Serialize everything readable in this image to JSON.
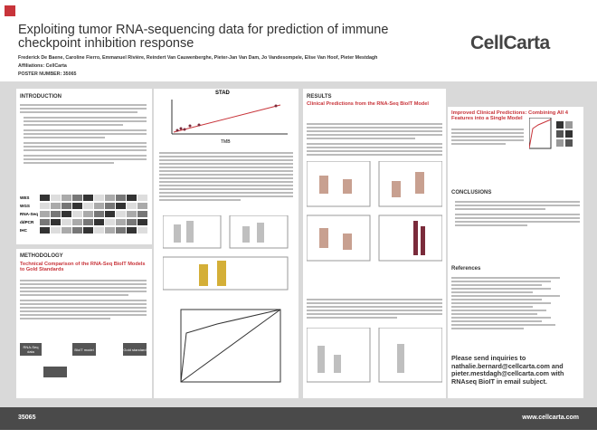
{
  "header": {
    "title": "Exploiting tumor RNA-sequencing data for prediction of immune checkpoint inhibition response",
    "authors": "Frederick De Baene, Caroline Fierro, Emmanuel Rivière, Reindert Van Cauwenberghe, Pieter-Jan Van Dam, Jo Vandesompele, Elise Van Hoof, Pieter Mestdagh",
    "affiliations": "Affiliations: CellCarta",
    "poster_number": "POSTER NUMBER: 35065",
    "logo": "CellCarta"
  },
  "introduction": {
    "title": "INTRODUCTION",
    "assays": [
      "WES",
      "WGS",
      "RNA-Seq",
      "ddPCR",
      "IHC"
    ]
  },
  "methodology": {
    "title": "METHODOLOGY",
    "subtitle": "Technical Comparison of the RNA-Seq BioIT Models to Gold Standards",
    "flow": [
      "RNA-Seq data",
      "BioIT model",
      "Gold standard"
    ]
  },
  "figure": {
    "title": "STAD",
    "x_label": "TMB"
  },
  "results": {
    "title": "RESULTS",
    "subtitle": "Clinical Predictions from the RNA-Seq BioIT Model"
  },
  "combined": {
    "title": "Improved Clinical Predictions: Combining All 4 Features into a Single Model"
  },
  "conclusions": {
    "title": "CONCLUSIONS"
  },
  "references": {
    "title": "References"
  },
  "contact": {
    "text": "Please send inquiries to nathalie.bernard@cellcarta.com and pieter.mestdagh@cellcarta.com with RNAseq BioIT in email subject."
  },
  "footer": {
    "number": "35065",
    "url": "www.cellcarta.com"
  }
}
